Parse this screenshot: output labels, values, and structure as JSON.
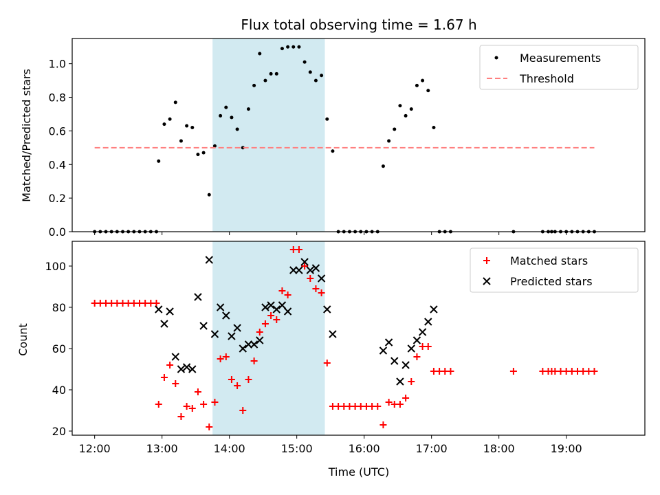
{
  "chart_data": [
    {
      "type": "scatter",
      "title": "Flux total observing time = 1.67 h",
      "xlabel": "",
      "ylabel": "Matched/Predicted stars",
      "xlim": [
        "11:40",
        "20:10"
      ],
      "ylim": [
        0,
        1.15
      ],
      "yticks": [
        0.0,
        0.2,
        0.4,
        0.6,
        0.8,
        1.0
      ],
      "ytick_labels": [
        "0.0",
        "0.2",
        "0.4",
        "0.6",
        "0.8",
        "1.0"
      ],
      "xticks": [
        "12:00",
        "13:00",
        "14:00",
        "15:00",
        "16:00",
        "17:00",
        "18:00",
        "19:00"
      ],
      "xtick_labels_shown": false,
      "shaded_span": {
        "from": "13:45",
        "to": "15:25",
        "color": "#add8e6"
      },
      "legend": "top-right",
      "series": [
        {
          "name": "Measurements",
          "marker": "dot",
          "color": "#000000",
          "points": [
            [
              "12:00",
              0
            ],
            [
              "12:05",
              0
            ],
            [
              "12:10",
              0
            ],
            [
              "12:15",
              0
            ],
            [
              "12:20",
              0
            ],
            [
              "12:25",
              0
            ],
            [
              "12:30",
              0
            ],
            [
              "12:35",
              0
            ],
            [
              "12:40",
              0
            ],
            [
              "12:45",
              0
            ],
            [
              "12:50",
              0
            ],
            [
              "12:55",
              0
            ],
            [
              "12:57",
              0.42
            ],
            [
              "13:02",
              0.64
            ],
            [
              "13:07",
              0.67
            ],
            [
              "13:12",
              0.77
            ],
            [
              "13:17",
              0.54
            ],
            [
              "13:22",
              0.63
            ],
            [
              "13:27",
              0.62
            ],
            [
              "13:32",
              0.46
            ],
            [
              "13:37",
              0.47
            ],
            [
              "13:42",
              0.22
            ],
            [
              "13:47",
              0.51
            ],
            [
              "13:52",
              0.69
            ],
            [
              "13:57",
              0.74
            ],
            [
              "14:02",
              0.68
            ],
            [
              "14:07",
              0.61
            ],
            [
              "14:12",
              0.5
            ],
            [
              "14:17",
              0.73
            ],
            [
              "14:22",
              0.87
            ],
            [
              "14:27",
              1.06
            ],
            [
              "14:32",
              0.9
            ],
            [
              "14:37",
              0.94
            ],
            [
              "14:42",
              0.94
            ],
            [
              "14:47",
              1.09
            ],
            [
              "14:52",
              1.1
            ],
            [
              "14:57",
              1.1
            ],
            [
              "15:02",
              1.1
            ],
            [
              "15:07",
              1.01
            ],
            [
              "15:12",
              0.95
            ],
            [
              "15:17",
              0.9
            ],
            [
              "15:22",
              0.93
            ],
            [
              "15:27",
              0.67
            ],
            [
              "15:32",
              0.48
            ],
            [
              "15:37",
              0
            ],
            [
              "15:42",
              0
            ],
            [
              "15:47",
              0
            ],
            [
              "15:52",
              0
            ],
            [
              "15:57",
              0
            ],
            [
              "16:02",
              0
            ],
            [
              "16:07",
              0
            ],
            [
              "16:12",
              0
            ],
            [
              "16:17",
              0.39
            ],
            [
              "16:22",
              0.54
            ],
            [
              "16:27",
              0.61
            ],
            [
              "16:32",
              0.75
            ],
            [
              "16:37",
              0.69
            ],
            [
              "16:42",
              0.73
            ],
            [
              "16:47",
              0.87
            ],
            [
              "16:52",
              0.9
            ],
            [
              "16:57",
              0.84
            ],
            [
              "17:02",
              0.62
            ],
            [
              "17:07",
              0
            ],
            [
              "17:12",
              0
            ],
            [
              "17:17",
              0
            ],
            [
              "18:13",
              0
            ],
            [
              "18:39",
              0
            ],
            [
              "18:44",
              0
            ],
            [
              "18:47",
              0
            ],
            [
              "18:50",
              0
            ],
            [
              "18:55",
              0
            ],
            [
              "19:00",
              0
            ],
            [
              "19:05",
              0
            ],
            [
              "19:10",
              0
            ],
            [
              "19:15",
              0
            ],
            [
              "19:20",
              0
            ],
            [
              "19:25",
              0
            ]
          ]
        },
        {
          "name": "Threshold",
          "marker": "dashed-line",
          "color": "#ff7f7f",
          "points": [
            [
              "12:00",
              0.5
            ],
            [
              "19:25",
              0.5
            ]
          ]
        }
      ]
    },
    {
      "type": "scatter",
      "title": "",
      "xlabel": "Time (UTC)",
      "ylabel": "Count",
      "xlim": [
        "11:40",
        "20:10"
      ],
      "ylim": [
        18,
        112
      ],
      "yticks": [
        20,
        40,
        60,
        80,
        100
      ],
      "ytick_labels": [
        "20",
        "40",
        "60",
        "80",
        "100"
      ],
      "xticks": [
        "12:00",
        "13:00",
        "14:00",
        "15:00",
        "16:00",
        "17:00",
        "18:00",
        "19:00"
      ],
      "xtick_labels": [
        "12:00",
        "13:00",
        "14:00",
        "15:00",
        "16:00",
        "17:00",
        "18:00",
        "19:00"
      ],
      "shaded_span": {
        "from": "13:45",
        "to": "15:25",
        "color": "#add8e6"
      },
      "legend": "top-right",
      "series": [
        {
          "name": "Matched stars",
          "marker": "plus",
          "color": "#ff0000",
          "points": [
            [
              "12:00",
              82
            ],
            [
              "12:05",
              82
            ],
            [
              "12:10",
              82
            ],
            [
              "12:15",
              82
            ],
            [
              "12:20",
              82
            ],
            [
              "12:25",
              82
            ],
            [
              "12:30",
              82
            ],
            [
              "12:35",
              82
            ],
            [
              "12:40",
              82
            ],
            [
              "12:45",
              82
            ],
            [
              "12:50",
              82
            ],
            [
              "12:55",
              82
            ],
            [
              "12:57",
              33
            ],
            [
              "13:02",
              46
            ],
            [
              "13:07",
              52
            ],
            [
              "13:12",
              43
            ],
            [
              "13:17",
              27
            ],
            [
              "13:22",
              32
            ],
            [
              "13:27",
              31
            ],
            [
              "13:32",
              39
            ],
            [
              "13:37",
              33
            ],
            [
              "13:42",
              22
            ],
            [
              "13:47",
              34
            ],
            [
              "13:52",
              55
            ],
            [
              "13:57",
              56
            ],
            [
              "14:02",
              45
            ],
            [
              "14:07",
              42
            ],
            [
              "14:12",
              30
            ],
            [
              "14:17",
              45
            ],
            [
              "14:22",
              54
            ],
            [
              "14:27",
              68
            ],
            [
              "14:32",
              72
            ],
            [
              "14:37",
              76
            ],
            [
              "14:42",
              74
            ],
            [
              "14:47",
              88
            ],
            [
              "14:52",
              86
            ],
            [
              "14:57",
              108
            ],
            [
              "15:02",
              108
            ],
            [
              "15:07",
              100
            ],
            [
              "15:12",
              94
            ],
            [
              "15:17",
              89
            ],
            [
              "15:22",
              87
            ],
            [
              "15:27",
              53
            ],
            [
              "15:32",
              32
            ],
            [
              "15:37",
              32
            ],
            [
              "15:42",
              32
            ],
            [
              "15:47",
              32
            ],
            [
              "15:52",
              32
            ],
            [
              "15:57",
              32
            ],
            [
              "16:02",
              32
            ],
            [
              "16:07",
              32
            ],
            [
              "16:12",
              32
            ],
            [
              "16:17",
              23
            ],
            [
              "16:22",
              34
            ],
            [
              "16:27",
              33
            ],
            [
              "16:32",
              33
            ],
            [
              "16:37",
              36
            ],
            [
              "16:42",
              44
            ],
            [
              "16:47",
              56
            ],
            [
              "16:52",
              61
            ],
            [
              "16:57",
              61
            ],
            [
              "17:02",
              49
            ],
            [
              "17:07",
              49
            ],
            [
              "17:12",
              49
            ],
            [
              "17:17",
              49
            ],
            [
              "18:13",
              49
            ],
            [
              "18:39",
              49
            ],
            [
              "18:44",
              49
            ],
            [
              "18:47",
              49
            ],
            [
              "18:50",
              49
            ],
            [
              "18:55",
              49
            ],
            [
              "19:00",
              49
            ],
            [
              "19:05",
              49
            ],
            [
              "19:10",
              49
            ],
            [
              "19:15",
              49
            ],
            [
              "19:20",
              49
            ],
            [
              "19:25",
              49
            ]
          ]
        },
        {
          "name": "Predicted stars",
          "marker": "x",
          "color": "#000000",
          "points": [
            [
              "12:57",
              79
            ],
            [
              "13:02",
              72
            ],
            [
              "13:07",
              78
            ],
            [
              "13:12",
              56
            ],
            [
              "13:17",
              50
            ],
            [
              "13:22",
              51
            ],
            [
              "13:27",
              50
            ],
            [
              "13:32",
              85
            ],
            [
              "13:37",
              71
            ],
            [
              "13:42",
              103
            ],
            [
              "13:47",
              67
            ],
            [
              "13:52",
              80
            ],
            [
              "13:57",
              76
            ],
            [
              "14:02",
              66
            ],
            [
              "14:07",
              70
            ],
            [
              "14:12",
              60
            ],
            [
              "14:17",
              62
            ],
            [
              "14:22",
              62
            ],
            [
              "14:27",
              64
            ],
            [
              "14:32",
              80
            ],
            [
              "14:37",
              81
            ],
            [
              "14:42",
              79
            ],
            [
              "14:47",
              81
            ],
            [
              "14:52",
              78
            ],
            [
              "14:57",
              98
            ],
            [
              "15:02",
              98
            ],
            [
              "15:07",
              102
            ],
            [
              "15:12",
              98
            ],
            [
              "15:17",
              99
            ],
            [
              "15:22",
              94
            ],
            [
              "15:27",
              79
            ],
            [
              "15:32",
              67
            ],
            [
              "16:17",
              59
            ],
            [
              "16:22",
              63
            ],
            [
              "16:27",
              54
            ],
            [
              "16:32",
              44
            ],
            [
              "16:37",
              52
            ],
            [
              "16:42",
              60
            ],
            [
              "16:47",
              64
            ],
            [
              "16:52",
              68
            ],
            [
              "16:57",
              73
            ],
            [
              "17:02",
              79
            ]
          ]
        }
      ]
    }
  ]
}
